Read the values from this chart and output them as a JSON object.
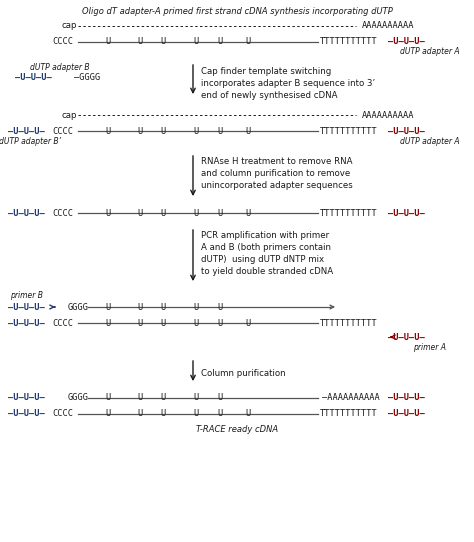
{
  "title_top": "Oligo dT adapter-A primed first strand cDNA synthesis incorporating dUTP",
  "title_bottom": "T-RACE ready cDNA",
  "bg_color": "#ffffff",
  "blue": "#1f3a6e",
  "red": "#8b0000",
  "black": "#1a1a1a",
  "arrow_text1": [
    "Cap finder template switching",
    "incorporates adapter B sequence into 3’",
    "end of newly synthesised cDNA"
  ],
  "arrow_text2": [
    "RNAse H treatment to remove RNA",
    "and column purification to remove",
    "unincorporated adapter sequences"
  ],
  "arrow_text3": [
    "PCR amplification with primer",
    "A and B (both primers contain",
    "dUTP)  using dUTP dNTP mix",
    "to yield double stranded cDNA"
  ],
  "arrow_text4": "Column purification",
  "label_adapA": "dUTP adapter A",
  "label_adapB": "dUTP adapter B",
  "label_adapBp": "dUTP adapter B’",
  "label_primerA": "primer A",
  "label_primerB": "primer B"
}
